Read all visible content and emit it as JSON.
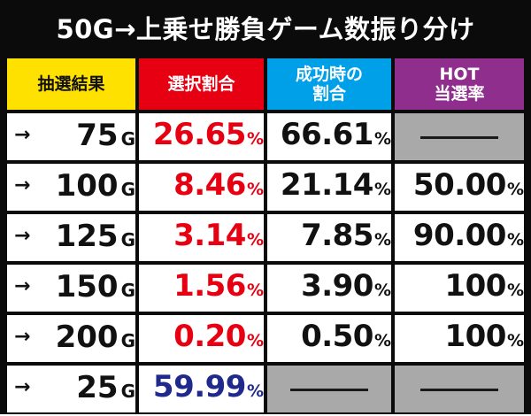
{
  "title": "50G→上乗せ勝負ゲーム数振り分け",
  "headers": {
    "col1": "抽選結果",
    "col2": "選択割合",
    "col3_line1": "成功時の",
    "col3_line2": "割合",
    "col4_line1": "HOT",
    "col4_line2": "当選率"
  },
  "header_colors": {
    "col1": "#ffe100",
    "col2": "#e60012",
    "col3": "#00a0e9",
    "col4": "#8f2e8c"
  },
  "arrow_symbol": "→",
  "game_unit": "G",
  "percent_unit": "%",
  "rows": [
    {
      "games": "75",
      "selection": "26.65",
      "success": "66.61",
      "hot": null
    },
    {
      "games": "100",
      "selection": "8.46",
      "success": "21.14",
      "hot": "50.00"
    },
    {
      "games": "125",
      "selection": "3.14",
      "success": "7.85",
      "hot": "90.00"
    },
    {
      "games": "150",
      "selection": "1.56",
      "success": "3.90",
      "hot": "100"
    },
    {
      "games": "200",
      "selection": "0.20",
      "success": "0.50",
      "hot": "100"
    },
    {
      "games": "25",
      "selection": "59.99",
      "success": null,
      "hot": null
    }
  ],
  "value_colors": {
    "selection": "#e60012",
    "selection_last_row": "#1f2a8c",
    "default": "#111111",
    "empty_cell": "#a9a9a9"
  }
}
